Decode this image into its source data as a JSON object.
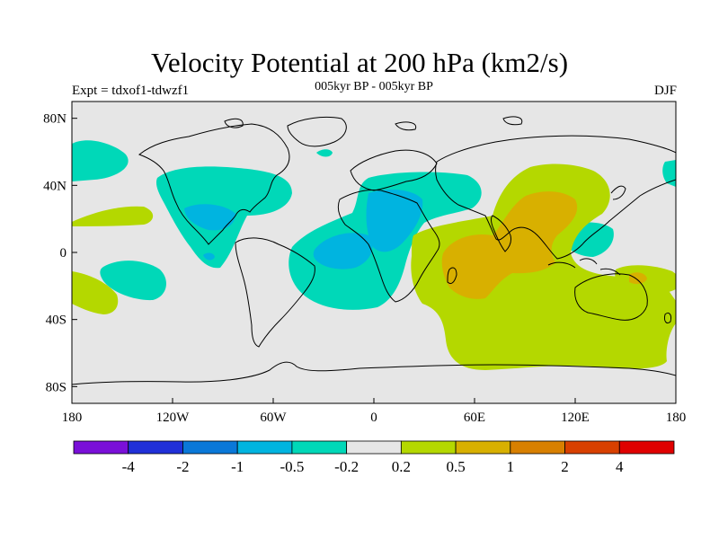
{
  "header": {
    "title": "Velocity Potential at 200 hPa (km2/s)",
    "experiment": "Expt = tdxof1-tdwzf1",
    "period": "005kyr BP - 005kyr BP",
    "season": "DJF"
  },
  "axes": {
    "y_ticks": [
      {
        "label": "80N",
        "lat": 80
      },
      {
        "label": "40N",
        "lat": 40
      },
      {
        "label": "0",
        "lat": 0
      },
      {
        "label": "40S",
        "lat": -40
      },
      {
        "label": "80S",
        "lat": -80
      }
    ],
    "x_ticks": [
      {
        "label": "180",
        "lon": -180
      },
      {
        "label": "120W",
        "lon": -120
      },
      {
        "label": "60W",
        "lon": -60
      },
      {
        "label": "0",
        "lon": 0
      },
      {
        "label": "60E",
        "lon": 60
      },
      {
        "label": "120E",
        "lon": 120
      },
      {
        "label": "180",
        "lon": 180
      }
    ]
  },
  "colorbar": {
    "colors": [
      "#7a10d8",
      "#2030d8",
      "#0a78d8",
      "#00b4e0",
      "#00d8b8",
      "#e6e6e6",
      "#b4d800",
      "#d8b000",
      "#d88000",
      "#d84000",
      "#e00000"
    ],
    "labels": [
      "-4",
      "-2",
      "-1",
      "-0.5",
      "-0.2",
      "0.2",
      "0.5",
      "1",
      "2",
      "4"
    ]
  },
  "map_colors": {
    "background": "#e6e6e6",
    "neg_weak": "#00d8b8",
    "neg_mod": "#00b4e0",
    "pos_weak": "#b4d800",
    "pos_mod": "#d8b000"
  }
}
